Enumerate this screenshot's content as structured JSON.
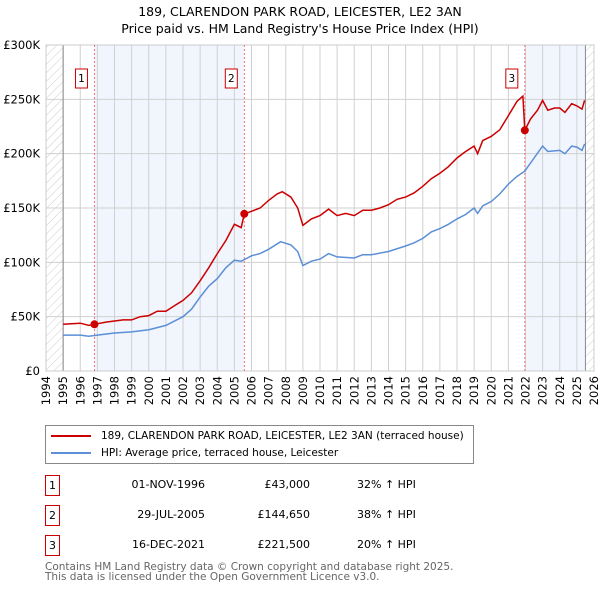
{
  "chart_data": {
    "type": "line",
    "title": "189, CLARENDON PARK ROAD, LEICESTER, LE2 3AN",
    "subtitle": "Price paid vs. HM Land Registry's House Price Index (HPI)",
    "xlim": [
      1994,
      2026
    ],
    "ylim": [
      0,
      300000
    ],
    "x_ticks": [
      1994,
      1995,
      1996,
      1997,
      1998,
      1999,
      2000,
      2001,
      2002,
      2003,
      2004,
      2005,
      2006,
      2007,
      2008,
      2009,
      2010,
      2011,
      2012,
      2013,
      2014,
      2015,
      2016,
      2017,
      2018,
      2019,
      2020,
      2021,
      2022,
      2023,
      2024,
      2025,
      2026
    ],
    "y_ticks": [
      {
        "v": 0,
        "label": "£0"
      },
      {
        "v": 50000,
        "label": "£50K"
      },
      {
        "v": 100000,
        "label": "£100K"
      },
      {
        "v": 150000,
        "label": "£150K"
      },
      {
        "v": 200000,
        "label": "£200K"
      },
      {
        "v": 250000,
        "label": "£250K"
      },
      {
        "v": 300000,
        "label": "£300K"
      }
    ],
    "grid": true,
    "series": [
      {
        "name": "189, CLARENDON PARK ROAD, LEICESTER, LE2 3AN (terraced house)",
        "color": "#cc0000",
        "x": [
          1995,
          1996,
          1996.5,
          1996.83,
          1997.5,
          1998.5,
          1999,
          1999.5,
          2000,
          2000.5,
          2001,
          2001.5,
          2002,
          2002.5,
          2003,
          2003.5,
          2004,
          2004.5,
          2005,
          2005.4,
          2005.58,
          2006,
          2006.5,
          2007,
          2007.5,
          2007.8,
          2008.3,
          2008.7,
          2009,
          2009.5,
          2010,
          2010.5,
          2011,
          2011.5,
          2012,
          2012.5,
          2013,
          2013.5,
          2014,
          2014.5,
          2015,
          2015.5,
          2016,
          2016.5,
          2017,
          2017.5,
          2018,
          2018.5,
          2019,
          2019.2,
          2019.5,
          2020,
          2020.5,
          2021,
          2021.5,
          2021.85,
          2021.96,
          2022.3,
          2022.7,
          2023,
          2023.3,
          2023.7,
          2024,
          2024.3,
          2024.7,
          2025,
          2025.3,
          2025.45
        ],
        "y": [
          43000,
          44000,
          42000,
          43000,
          45000,
          47000,
          47000,
          50000,
          51000,
          55000,
          55000,
          60000,
          65000,
          72000,
          83000,
          95000,
          108000,
          120000,
          135000,
          132000,
          144650,
          147000,
          150000,
          157000,
          163000,
          165000,
          160000,
          150000,
          134000,
          140000,
          143000,
          149000,
          143000,
          145000,
          143000,
          148000,
          148000,
          150000,
          153000,
          158000,
          160000,
          164000,
          170000,
          177000,
          182000,
          188000,
          196000,
          202000,
          207000,
          200000,
          212000,
          216000,
          222000,
          235000,
          248000,
          253000,
          221500,
          232000,
          240000,
          249000,
          240000,
          242000,
          242000,
          238000,
          246000,
          244000,
          241000,
          249000
        ]
      },
      {
        "name": "HPI: Average price, terraced house, Leicester",
        "color": "#5b8fd6",
        "x": [
          1995,
          1996,
          1996.5,
          1997,
          1998,
          1999,
          2000,
          2001,
          2002,
          2002.5,
          2003,
          2003.5,
          2004,
          2004.5,
          2005,
          2005.4,
          2006,
          2006.5,
          2007,
          2007.7,
          2008.3,
          2008.7,
          2009,
          2009.5,
          2010,
          2010.5,
          2011,
          2012,
          2012.5,
          2013,
          2014,
          2015,
          2015.5,
          2016,
          2016.5,
          2017,
          2017.5,
          2018,
          2018.5,
          2019,
          2019.2,
          2019.5,
          2020,
          2020.5,
          2021,
          2021.5,
          2021.96,
          2022.5,
          2023,
          2023.3,
          2024,
          2024.3,
          2024.7,
          2025,
          2025.3,
          2025.45
        ],
        "y": [
          33000,
          33000,
          32000,
          33000,
          35000,
          36000,
          38000,
          42000,
          50000,
          57000,
          68000,
          78000,
          85000,
          95000,
          102000,
          101000,
          106000,
          108000,
          112000,
          119000,
          116000,
          110000,
          97000,
          101000,
          103000,
          108000,
          105000,
          104000,
          107000,
          107000,
          110000,
          115000,
          118000,
          122000,
          128000,
          131000,
          135000,
          140000,
          144000,
          150000,
          145000,
          152000,
          156000,
          163000,
          172000,
          179000,
          184000,
          196000,
          207000,
          202000,
          203000,
          200000,
          207000,
          206000,
          203000,
          209000
        ]
      }
    ],
    "sales": [
      {
        "n": "1",
        "x": 1996.83,
        "price": 43000,
        "date": "01-NOV-1996",
        "price_label": "£43,000",
        "hpi": "32% ↑ HPI"
      },
      {
        "n": "2",
        "x": 2005.58,
        "price": 144650,
        "date": "29-JUL-2005",
        "price_label": "£144,650",
        "hpi": "38% ↑ HPI"
      },
      {
        "n": "3",
        "x": 2021.96,
        "price": 221500,
        "date": "16-DEC-2021",
        "price_label": "£221,500",
        "hpi": "20% ↑ HPI"
      }
    ],
    "shaded": [
      [
        1996.83,
        2005.58
      ],
      [
        2021.96,
        2025.5
      ]
    ],
    "data_range": [
      1995,
      2025.5
    ]
  },
  "legend": {
    "red": "189, CLARENDON PARK ROAD, LEICESTER, LE2 3AN (terraced house)",
    "blue": "HPI: Average price, terraced house, Leicester"
  },
  "footer": {
    "line1": "Contains HM Land Registry data © Crown copyright and database right 2025.",
    "line2": "This data is licensed under the Open Government Licence v3.0."
  }
}
